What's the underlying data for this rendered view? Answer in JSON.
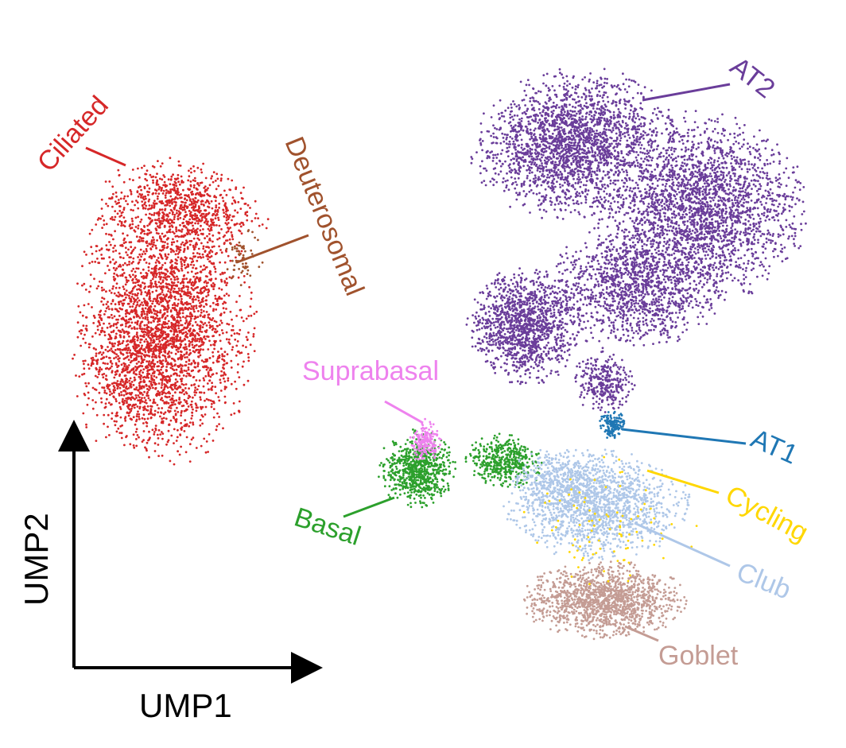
{
  "chart_data": {
    "type": "scatter",
    "title": "",
    "xlabel": "UMP1",
    "ylabel": "UMP2",
    "legend": "none",
    "grid": false,
    "clusters": [
      {
        "name": "Ciliated",
        "color": "#d62728"
      },
      {
        "name": "Deuterosomal",
        "color": "#a0522d"
      },
      {
        "name": "AT2",
        "color": "#6a3d9a"
      },
      {
        "name": "Suprabasal",
        "color": "#ee82ee"
      },
      {
        "name": "AT1",
        "color": "#1f77b4"
      },
      {
        "name": "Basal",
        "color": "#2ca02c"
      },
      {
        "name": "Cycling",
        "color": "#ffd700"
      },
      {
        "name": "Club",
        "color": "#aec7e8"
      },
      {
        "name": "Goblet",
        "color": "#c49c94"
      }
    ]
  }
}
